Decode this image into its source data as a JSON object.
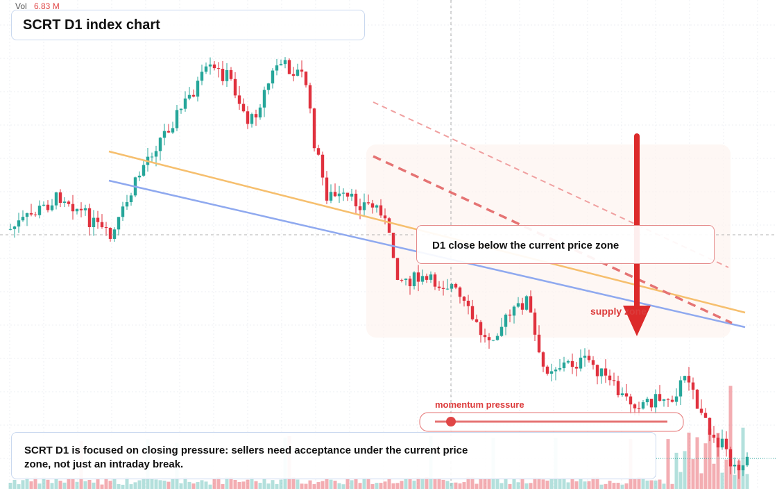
{
  "volume": {
    "label": "Vol",
    "value": "6.83 M"
  },
  "header": {
    "title": "SCRT D1 index chart"
  },
  "callout": {
    "text": "D1 close below the current price zone"
  },
  "annotations": {
    "supply": "supply zone",
    "momentum": "momentum pressure"
  },
  "note": {
    "text": "SCRT D1 is focused on closing pressure: sellers need acceptance under the current price zone, not just an intraday break."
  }
}
